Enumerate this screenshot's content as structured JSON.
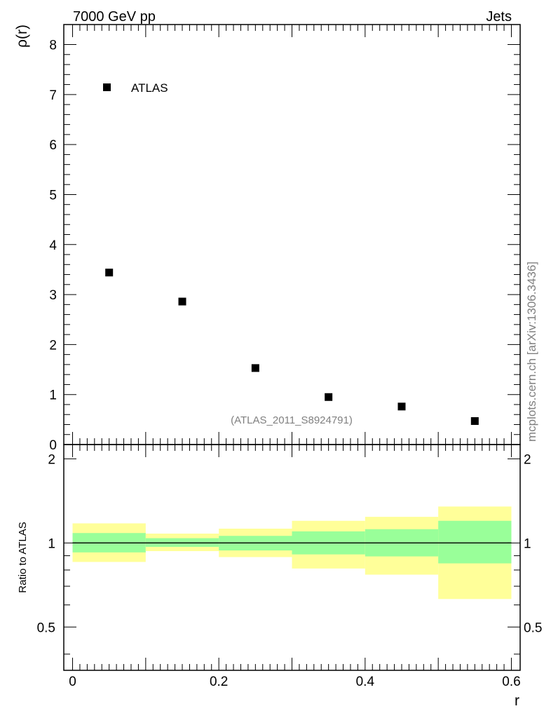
{
  "header": {
    "left_title": "7000 GeV pp",
    "right_title": "Jets",
    "watermark": "mcplots.cern.ch [arXiv:1306.3436]",
    "analysis_id": "(ATLAS_2011_S8924791)"
  },
  "colors": {
    "band_outer": "#ffff99",
    "band_inner": "#99ff99",
    "markers": "#000000",
    "watermark": "#808080"
  },
  "chart_data": [
    {
      "type": "scatter",
      "ylabel": "ρ(r)",
      "xlim": [
        -0.012,
        0.612
      ],
      "ylim": [
        0,
        8.4
      ],
      "yticks": [
        0,
        1,
        2,
        3,
        4,
        5,
        6,
        7,
        8
      ],
      "ytick_labels": [
        "0",
        "1",
        "2",
        "3",
        "4",
        "5",
        "6",
        "7",
        "8"
      ],
      "legend": {
        "placement": "top-left",
        "entries": [
          {
            "label": "ATLAS",
            "marker": "square"
          }
        ]
      },
      "series": [
        {
          "name": "ATLAS",
          "x": [
            0.05,
            0.15,
            0.25,
            0.35,
            0.45,
            0.55
          ],
          "y": [
            3.44,
            2.86,
            1.53,
            0.95,
            0.76,
            0.47
          ]
        }
      ]
    },
    {
      "type": "area",
      "xlabel": "r",
      "ylabel": "Ratio to ATLAS",
      "xlim": [
        -0.012,
        0.612
      ],
      "ylim": [
        0.35,
        2.25
      ],
      "log_y": true,
      "xticks": [
        0,
        0.2,
        0.4,
        0.6
      ],
      "xtick_labels": [
        "0",
        "0.2",
        "0.4",
        "0.6"
      ],
      "yticks": [
        0.5,
        1,
        2
      ],
      "ytick_labels": [
        "0.5",
        "1",
        "2"
      ],
      "reference_line": 1,
      "bins": [
        {
          "x_low": 0.0,
          "x_high": 0.1,
          "inner_low": 0.925,
          "inner_high": 1.085,
          "outer_low": 0.855,
          "outer_high": 1.175
        },
        {
          "x_low": 0.1,
          "x_high": 0.2,
          "inner_low": 0.968,
          "inner_high": 1.04,
          "outer_low": 0.935,
          "outer_high": 1.08
        },
        {
          "x_low": 0.2,
          "x_high": 0.3,
          "inner_low": 0.94,
          "inner_high": 1.06,
          "outer_low": 0.89,
          "outer_high": 1.125
        },
        {
          "x_low": 0.3,
          "x_high": 0.4,
          "inner_low": 0.91,
          "inner_high": 1.1,
          "outer_low": 0.81,
          "outer_high": 1.2
        },
        {
          "x_low": 0.4,
          "x_high": 0.5,
          "inner_low": 0.895,
          "inner_high": 1.12,
          "outer_low": 0.77,
          "outer_high": 1.24
        },
        {
          "x_low": 0.5,
          "x_high": 0.6,
          "inner_low": 0.845,
          "inner_high": 1.2,
          "outer_low": 0.63,
          "outer_high": 1.35
        }
      ]
    }
  ]
}
